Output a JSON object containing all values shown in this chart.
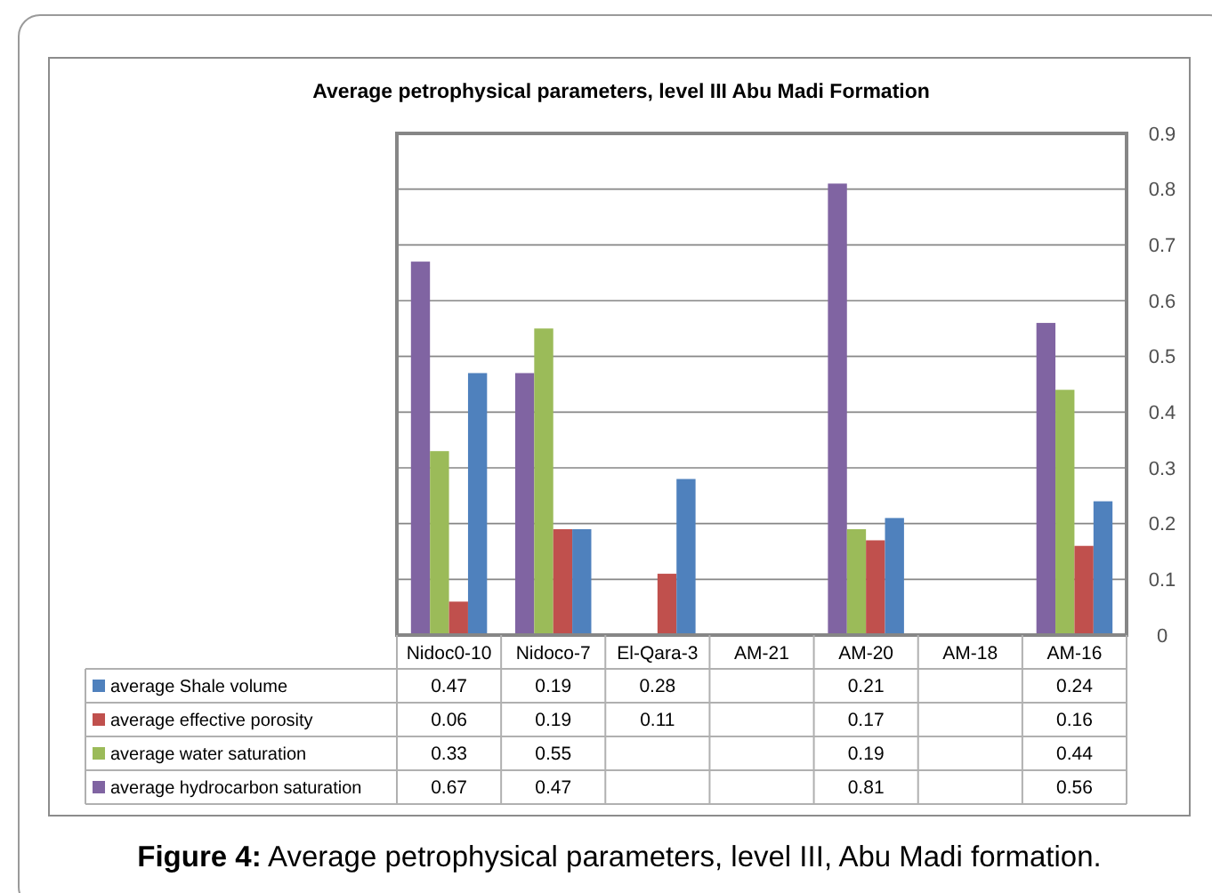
{
  "chart_data": {
    "type": "bar",
    "title": "Average petrophysical parameters, level III Abu Madi Formation",
    "categories": [
      "Nidoc0-10",
      "Nidoco-7",
      "El-Qara-3",
      "AM-21",
      "AM-20",
      "AM-18",
      "AM-16"
    ],
    "series": [
      {
        "name": "average hydrocarbon saturation",
        "color": "#8064a2",
        "values": [
          0.67,
          0.47,
          null,
          null,
          0.81,
          null,
          0.56
        ]
      },
      {
        "name": "average water saturation",
        "color": "#9bbb59",
        "values": [
          0.33,
          0.55,
          null,
          null,
          0.19,
          null,
          0.44
        ]
      },
      {
        "name": "average effective porosity",
        "color": "#c0504d",
        "values": [
          0.06,
          0.19,
          0.11,
          null,
          0.17,
          null,
          0.16
        ]
      },
      {
        "name": "average Shale volume",
        "color": "#4f81bd",
        "values": [
          0.47,
          0.19,
          0.28,
          null,
          0.21,
          null,
          0.24
        ]
      }
    ],
    "ylim": [
      0,
      0.9
    ],
    "yticks": [
      0,
      0.1,
      0.2,
      0.3,
      0.4,
      0.5,
      0.6,
      0.7,
      0.8,
      0.9
    ],
    "grid": "y",
    "legend": "bottom left",
    "data_labels": true,
    "annotations": [
      "Figure 4: Average petrophysical parameters, level III, Abu Madi formation."
    ]
  }
}
